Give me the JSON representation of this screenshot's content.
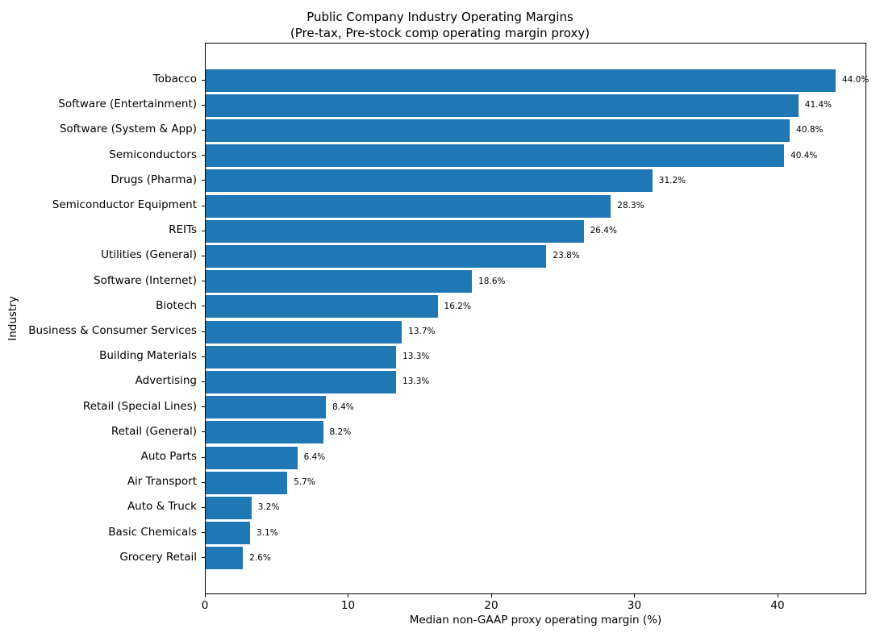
{
  "chart_data": {
    "type": "bar",
    "orientation": "horizontal",
    "title": "Public Company Industry Operating Margins",
    "subtitle": "(Pre-tax, Pre-stock comp operating margin proxy)",
    "xlabel": "Median non-GAAP proxy operating margin (%)",
    "ylabel": "Industry",
    "categories": [
      "Tobacco",
      "Software (Entertainment)",
      "Software (System & App)",
      "Semiconductors",
      "Drugs (Pharma)",
      "Semiconductor Equipment",
      "REITs",
      "Utilities (General)",
      "Software (Internet)",
      "Biotech",
      "Business & Consumer Services",
      "Building Materials",
      "Advertising",
      "Retail (Special Lines)",
      "Retail (General)",
      "Auto Parts",
      "Air Transport",
      "Auto & Truck",
      "Basic Chemicals",
      "Grocery Retail"
    ],
    "values": [
      44.0,
      41.4,
      40.8,
      40.4,
      31.2,
      28.3,
      26.4,
      23.8,
      18.6,
      16.2,
      13.7,
      13.3,
      13.3,
      8.4,
      8.2,
      6.4,
      5.7,
      3.2,
      3.1,
      2.6
    ],
    "value_labels": [
      "44.0%",
      "41.4%",
      "40.8%",
      "40.4%",
      "31.2%",
      "28.3%",
      "26.4%",
      "23.8%",
      "18.6%",
      "16.2%",
      "13.7%",
      "13.3%",
      "13.3%",
      "8.4%",
      "8.2%",
      "6.4%",
      "5.7%",
      "3.2%",
      "3.1%",
      "2.6%"
    ],
    "xlim": [
      0,
      46.2
    ],
    "xticks": [
      0,
      10,
      20,
      30,
      40
    ],
    "bar_color": "#1f77b4",
    "text_color": "#000000",
    "grid": false,
    "legend": "none"
  }
}
